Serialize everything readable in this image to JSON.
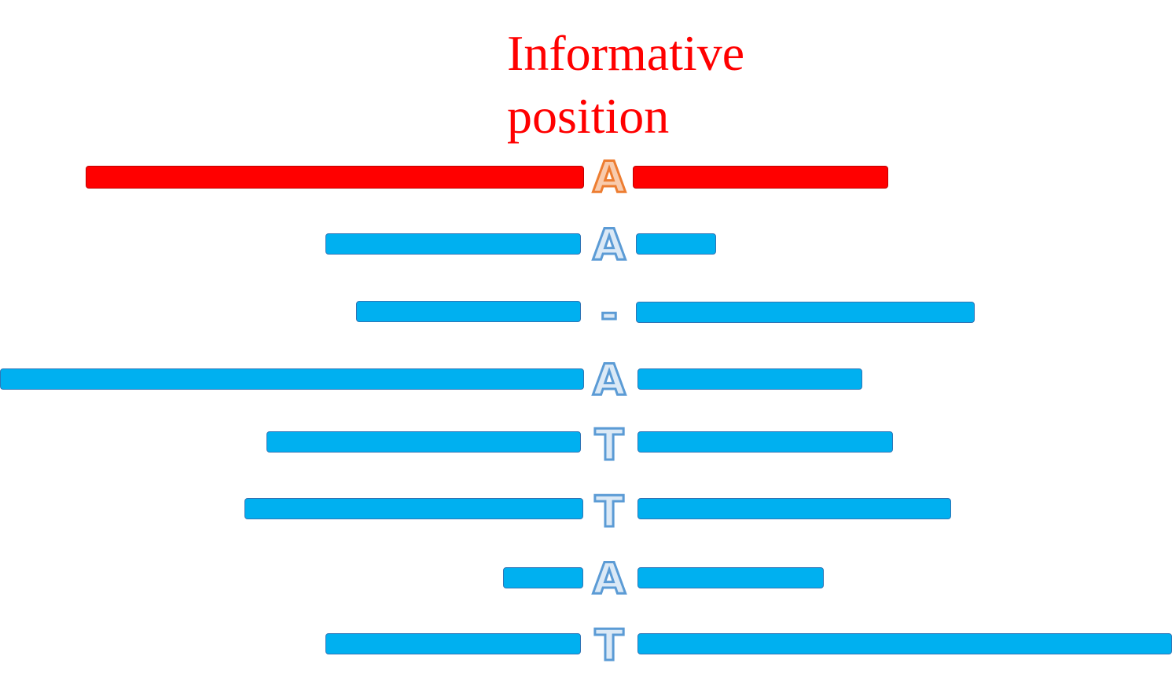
{
  "title": {
    "line1": "Informative",
    "line2": "position"
  },
  "colors": {
    "title": "#ff0000",
    "reference_bar": "#ff0000",
    "read_bar": "#00b0f0",
    "highlight_base_outline": "#ed7d31",
    "read_base_outline": "#5b9bd5"
  },
  "rows": [
    {
      "role": "reference",
      "base": "A",
      "highlight": true
    },
    {
      "role": "read",
      "base": "A",
      "highlight": false
    },
    {
      "role": "read",
      "base": "-",
      "highlight": false
    },
    {
      "role": "read",
      "base": "A",
      "highlight": false
    },
    {
      "role": "read",
      "base": "T",
      "highlight": false
    },
    {
      "role": "read",
      "base": "T",
      "highlight": false
    },
    {
      "role": "read",
      "base": "A",
      "highlight": false
    },
    {
      "role": "read",
      "base": "T",
      "highlight": false
    }
  ]
}
